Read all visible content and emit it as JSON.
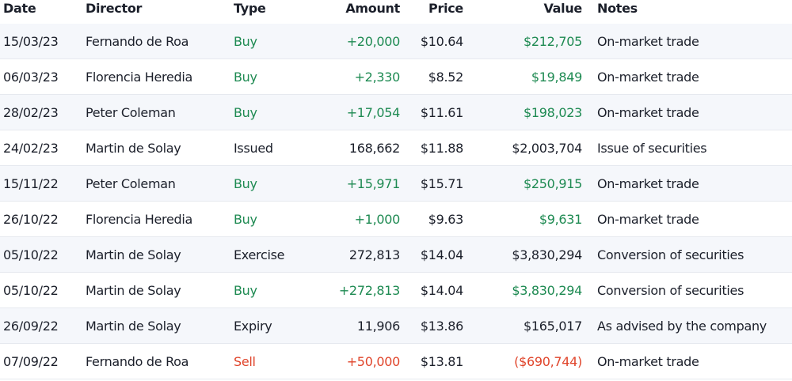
{
  "header": {
    "columns": [
      "Date",
      "Director",
      "Type",
      "Amount",
      "Price",
      "Value",
      "Notes"
    ]
  },
  "table": {
    "rows": [
      [
        "15/03/23",
        "Fernando de Roa",
        "Buy",
        "+20,000",
        "$10.64",
        "$212,705",
        "On-market trade"
      ],
      [
        "06/03/23",
        "Florencia Heredia",
        "Buy",
        "+2,330",
        "$8.52",
        "$19,849",
        "On-market trade"
      ],
      [
        "28/02/23",
        "Peter Coleman",
        "Buy",
        "+17,054",
        "$11.61",
        "$198,023",
        "On-market trade"
      ],
      [
        "24/02/23",
        "Martin de Solay",
        "Issued",
        "168,662",
        "$11.88",
        "$2,003,704",
        "Issue of securities"
      ],
      [
        "15/11/22",
        "Peter Coleman",
        "Buy",
        "+15,971",
        "$15.71",
        "$250,915",
        "On-market trade"
      ],
      [
        "26/10/22",
        "Florencia Heredia",
        "Buy",
        "+1,000",
        "$9.63",
        "$9,631",
        "On-market trade"
      ],
      [
        "05/10/22",
        "Martin de Solay",
        "Exercise",
        "272,813",
        "$14.04",
        "$3,830,294",
        "Conversion of securities"
      ],
      [
        "05/10/22",
        "Martin de Solay",
        "Buy",
        "+272,813",
        "$14.04",
        "$3,830,294",
        "Conversion of securities"
      ],
      [
        "26/09/22",
        "Martin de Solay",
        "Expiry",
        "11,906",
        "$13.86",
        "$165,017",
        "As advised by the company"
      ],
      [
        "07/09/22",
        "Fernando de Roa",
        "Sell",
        "+50,000",
        "$13.81",
        "($690,744)",
        "On-market trade"
      ]
    ]
  }
}
